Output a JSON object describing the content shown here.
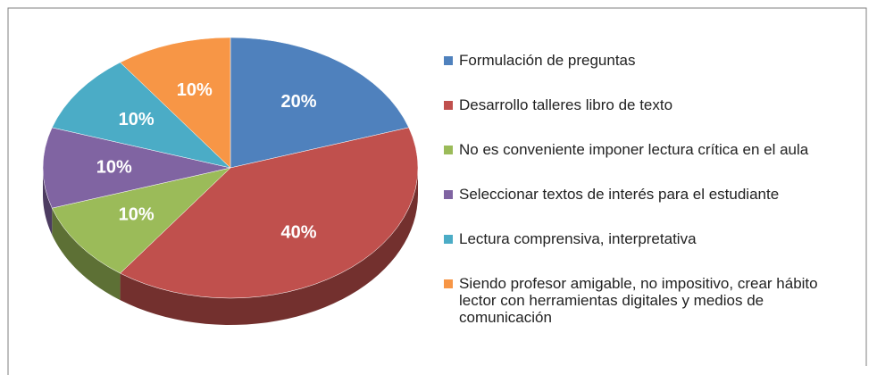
{
  "chart_data": {
    "type": "pie",
    "categories": [
      "Formulación de preguntas",
      "Desarrollo talleres libro de texto",
      "No es conveniente imponer lectura crítica en el aula",
      "Seleccionar textos de interés para el estudiante",
      "Lectura comprensiva, interpretativa",
      "Siendo profesor amigable, no impositivo, crear hábito lector con herramientas digitales y medios de comunicación"
    ],
    "values": [
      20,
      40,
      10,
      10,
      10,
      10
    ],
    "value_labels": [
      "20%",
      "40%",
      "10%",
      "10%",
      "10%",
      "10%"
    ],
    "colors": [
      "#4f81bd",
      "#c0504d",
      "#9bbb59",
      "#8064a2",
      "#4bacc6",
      "#f79646"
    ],
    "legend": "right"
  }
}
